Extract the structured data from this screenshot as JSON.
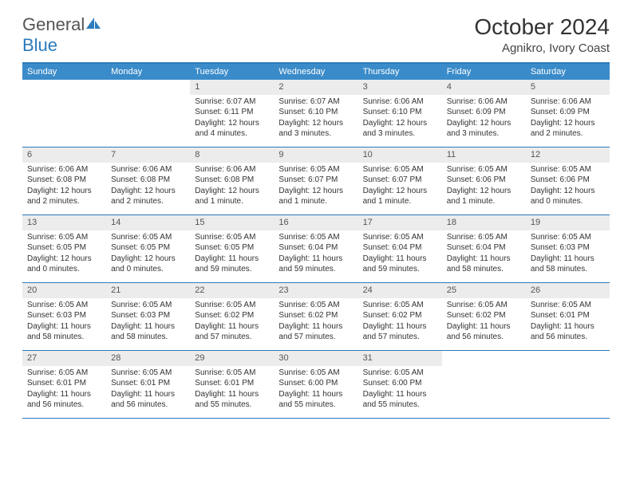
{
  "brand": {
    "name_part1": "General",
    "name_part2": "Blue"
  },
  "title": "October 2024",
  "location": "Agnikro, Ivory Coast",
  "colors": {
    "header_bar": "#3a8bc9",
    "border": "#2b7bbd",
    "daynum_bg": "#ececec",
    "text": "#333333",
    "bg": "#ffffff"
  },
  "weekdays": [
    "Sunday",
    "Monday",
    "Tuesday",
    "Wednesday",
    "Thursday",
    "Friday",
    "Saturday"
  ],
  "weeks": [
    [
      {
        "blank": true
      },
      {
        "blank": true
      },
      {
        "day": "1",
        "sunrise": "Sunrise: 6:07 AM",
        "sunset": "Sunset: 6:11 PM",
        "daylight1": "Daylight: 12 hours",
        "daylight2": "and 4 minutes."
      },
      {
        "day": "2",
        "sunrise": "Sunrise: 6:07 AM",
        "sunset": "Sunset: 6:10 PM",
        "daylight1": "Daylight: 12 hours",
        "daylight2": "and 3 minutes."
      },
      {
        "day": "3",
        "sunrise": "Sunrise: 6:06 AM",
        "sunset": "Sunset: 6:10 PM",
        "daylight1": "Daylight: 12 hours",
        "daylight2": "and 3 minutes."
      },
      {
        "day": "4",
        "sunrise": "Sunrise: 6:06 AM",
        "sunset": "Sunset: 6:09 PM",
        "daylight1": "Daylight: 12 hours",
        "daylight2": "and 3 minutes."
      },
      {
        "day": "5",
        "sunrise": "Sunrise: 6:06 AM",
        "sunset": "Sunset: 6:09 PM",
        "daylight1": "Daylight: 12 hours",
        "daylight2": "and 2 minutes."
      }
    ],
    [
      {
        "day": "6",
        "sunrise": "Sunrise: 6:06 AM",
        "sunset": "Sunset: 6:08 PM",
        "daylight1": "Daylight: 12 hours",
        "daylight2": "and 2 minutes."
      },
      {
        "day": "7",
        "sunrise": "Sunrise: 6:06 AM",
        "sunset": "Sunset: 6:08 PM",
        "daylight1": "Daylight: 12 hours",
        "daylight2": "and 2 minutes."
      },
      {
        "day": "8",
        "sunrise": "Sunrise: 6:06 AM",
        "sunset": "Sunset: 6:08 PM",
        "daylight1": "Daylight: 12 hours",
        "daylight2": "and 1 minute."
      },
      {
        "day": "9",
        "sunrise": "Sunrise: 6:05 AM",
        "sunset": "Sunset: 6:07 PM",
        "daylight1": "Daylight: 12 hours",
        "daylight2": "and 1 minute."
      },
      {
        "day": "10",
        "sunrise": "Sunrise: 6:05 AM",
        "sunset": "Sunset: 6:07 PM",
        "daylight1": "Daylight: 12 hours",
        "daylight2": "and 1 minute."
      },
      {
        "day": "11",
        "sunrise": "Sunrise: 6:05 AM",
        "sunset": "Sunset: 6:06 PM",
        "daylight1": "Daylight: 12 hours",
        "daylight2": "and 1 minute."
      },
      {
        "day": "12",
        "sunrise": "Sunrise: 6:05 AM",
        "sunset": "Sunset: 6:06 PM",
        "daylight1": "Daylight: 12 hours",
        "daylight2": "and 0 minutes."
      }
    ],
    [
      {
        "day": "13",
        "sunrise": "Sunrise: 6:05 AM",
        "sunset": "Sunset: 6:05 PM",
        "daylight1": "Daylight: 12 hours",
        "daylight2": "and 0 minutes."
      },
      {
        "day": "14",
        "sunrise": "Sunrise: 6:05 AM",
        "sunset": "Sunset: 6:05 PM",
        "daylight1": "Daylight: 12 hours",
        "daylight2": "and 0 minutes."
      },
      {
        "day": "15",
        "sunrise": "Sunrise: 6:05 AM",
        "sunset": "Sunset: 6:05 PM",
        "daylight1": "Daylight: 11 hours",
        "daylight2": "and 59 minutes."
      },
      {
        "day": "16",
        "sunrise": "Sunrise: 6:05 AM",
        "sunset": "Sunset: 6:04 PM",
        "daylight1": "Daylight: 11 hours",
        "daylight2": "and 59 minutes."
      },
      {
        "day": "17",
        "sunrise": "Sunrise: 6:05 AM",
        "sunset": "Sunset: 6:04 PM",
        "daylight1": "Daylight: 11 hours",
        "daylight2": "and 59 minutes."
      },
      {
        "day": "18",
        "sunrise": "Sunrise: 6:05 AM",
        "sunset": "Sunset: 6:04 PM",
        "daylight1": "Daylight: 11 hours",
        "daylight2": "and 58 minutes."
      },
      {
        "day": "19",
        "sunrise": "Sunrise: 6:05 AM",
        "sunset": "Sunset: 6:03 PM",
        "daylight1": "Daylight: 11 hours",
        "daylight2": "and 58 minutes."
      }
    ],
    [
      {
        "day": "20",
        "sunrise": "Sunrise: 6:05 AM",
        "sunset": "Sunset: 6:03 PM",
        "daylight1": "Daylight: 11 hours",
        "daylight2": "and 58 minutes."
      },
      {
        "day": "21",
        "sunrise": "Sunrise: 6:05 AM",
        "sunset": "Sunset: 6:03 PM",
        "daylight1": "Daylight: 11 hours",
        "daylight2": "and 58 minutes."
      },
      {
        "day": "22",
        "sunrise": "Sunrise: 6:05 AM",
        "sunset": "Sunset: 6:02 PM",
        "daylight1": "Daylight: 11 hours",
        "daylight2": "and 57 minutes."
      },
      {
        "day": "23",
        "sunrise": "Sunrise: 6:05 AM",
        "sunset": "Sunset: 6:02 PM",
        "daylight1": "Daylight: 11 hours",
        "daylight2": "and 57 minutes."
      },
      {
        "day": "24",
        "sunrise": "Sunrise: 6:05 AM",
        "sunset": "Sunset: 6:02 PM",
        "daylight1": "Daylight: 11 hours",
        "daylight2": "and 57 minutes."
      },
      {
        "day": "25",
        "sunrise": "Sunrise: 6:05 AM",
        "sunset": "Sunset: 6:02 PM",
        "daylight1": "Daylight: 11 hours",
        "daylight2": "and 56 minutes."
      },
      {
        "day": "26",
        "sunrise": "Sunrise: 6:05 AM",
        "sunset": "Sunset: 6:01 PM",
        "daylight1": "Daylight: 11 hours",
        "daylight2": "and 56 minutes."
      }
    ],
    [
      {
        "day": "27",
        "sunrise": "Sunrise: 6:05 AM",
        "sunset": "Sunset: 6:01 PM",
        "daylight1": "Daylight: 11 hours",
        "daylight2": "and 56 minutes."
      },
      {
        "day": "28",
        "sunrise": "Sunrise: 6:05 AM",
        "sunset": "Sunset: 6:01 PM",
        "daylight1": "Daylight: 11 hours",
        "daylight2": "and 56 minutes."
      },
      {
        "day": "29",
        "sunrise": "Sunrise: 6:05 AM",
        "sunset": "Sunset: 6:01 PM",
        "daylight1": "Daylight: 11 hours",
        "daylight2": "and 55 minutes."
      },
      {
        "day": "30",
        "sunrise": "Sunrise: 6:05 AM",
        "sunset": "Sunset: 6:00 PM",
        "daylight1": "Daylight: 11 hours",
        "daylight2": "and 55 minutes."
      },
      {
        "day": "31",
        "sunrise": "Sunrise: 6:05 AM",
        "sunset": "Sunset: 6:00 PM",
        "daylight1": "Daylight: 11 hours",
        "daylight2": "and 55 minutes."
      },
      {
        "blank": true
      },
      {
        "blank": true
      }
    ]
  ]
}
